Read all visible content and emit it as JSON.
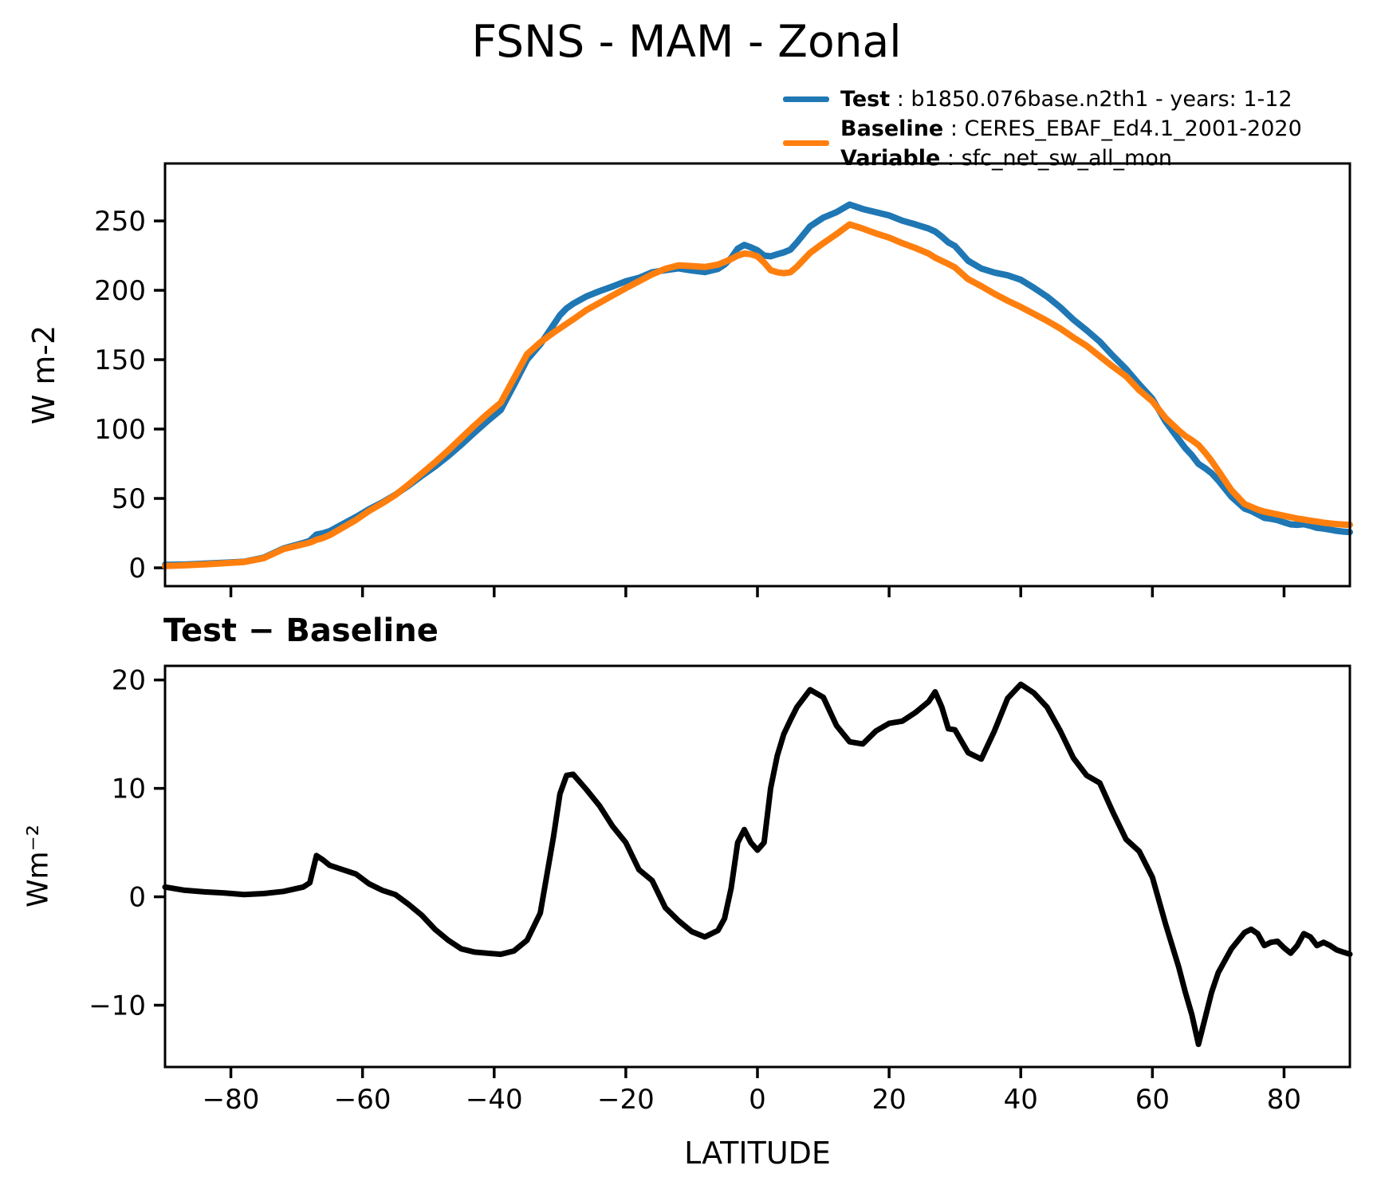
{
  "title": "FSNS - MAM - Zonal",
  "colors": {
    "test": "#1f77b4",
    "baseline": "#ff7f0e",
    "diff": "#000000"
  },
  "legend": {
    "test": {
      "name": "Test",
      "desc": " : b1850.076base.n2th1 - years: 1-12"
    },
    "baseline": {
      "name": "Baseline",
      "desc": " : CERES_EBAF_Ed4.1_2001-2020"
    },
    "variable": {
      "name": "Variable",
      "desc": " : sfc_net_sw_all_mon"
    }
  },
  "xaxis": {
    "label": "LATITUDE",
    "tick_values": [
      -80,
      -60,
      -40,
      -20,
      0,
      20,
      40,
      60,
      80
    ],
    "tick_labels": [
      "−80",
      "−60",
      "−40",
      "−20",
      "0",
      "20",
      "40",
      "60",
      "80"
    ],
    "lim": [
      -90,
      90
    ]
  },
  "chart_data": [
    {
      "type": "line",
      "title": "FSNS - MAM - Zonal",
      "ylabel": "W m-2",
      "xlabel": "",
      "legend_position": "upper right, above axes",
      "grid": false,
      "xlim": [
        -90,
        90
      ],
      "ylim": [
        -13.2,
        291.4
      ],
      "ytick_values": [
        0,
        50,
        100,
        150,
        200,
        250
      ],
      "ytick_labels": [
        "0",
        "50",
        "100",
        "150",
        "200",
        "250"
      ],
      "show_xlabels": false,
      "x": [
        -90,
        -87,
        -84,
        -81,
        -78,
        -75,
        -72,
        -69,
        -68,
        -67,
        -66,
        -65,
        -63,
        -61,
        -59,
        -57,
        -55,
        -53,
        -51,
        -49,
        -47,
        -45,
        -43,
        -41,
        -39,
        -37,
        -35,
        -33,
        -31,
        -30,
        -29,
        -28,
        -26,
        -24,
        -22,
        -20,
        -18,
        -16,
        -14,
        -12,
        -10,
        -8,
        -6,
        -5,
        -4,
        -3,
        -2,
        -1,
        0,
        1,
        2,
        3,
        4,
        5,
        6,
        8,
        10,
        12,
        14,
        16,
        18,
        20,
        22,
        24,
        26,
        27,
        28,
        29,
        30,
        32,
        34,
        36,
        38,
        40,
        42,
        44,
        46,
        48,
        50,
        52,
        54,
        56,
        58,
        60,
        62,
        64,
        65,
        66,
        67,
        68,
        69,
        70,
        72,
        74,
        75,
        76,
        77,
        78,
        79,
        80,
        81,
        82,
        83,
        84,
        85,
        86,
        87,
        88,
        89,
        90
      ],
      "series": [
        {
          "name": "Test: b1850.076base.n2th1 - years: 1-12",
          "slug": "test-line",
          "color": "#1f77b4",
          "width": 8,
          "values": [
            2.2,
            2.4,
            3.0,
            3.7,
            4.4,
            7.3,
            14.0,
            17.9,
            19.5,
            24.0,
            24.9,
            26.4,
            31.5,
            36.6,
            42.2,
            47.1,
            52.7,
            59.3,
            66.3,
            73.0,
            80.5,
            88.7,
            97.4,
            105.8,
            113.7,
            131.5,
            150.0,
            161.0,
            175.0,
            182.1,
            187.0,
            190.3,
            195.6,
            199.4,
            202.8,
            206.5,
            209.0,
            213.0,
            214.5,
            215.8,
            214.3,
            213.1,
            215.4,
            218.5,
            223.3,
            230.0,
            232.7,
            231.0,
            228.8,
            225.0,
            224.5,
            226.0,
            227.3,
            229.3,
            234.5,
            246.1,
            252.4,
            256.3,
            261.8,
            258.6,
            256.3,
            254.0,
            250.2,
            247.5,
            244.5,
            242.4,
            238.7,
            234.5,
            231.9,
            221.3,
            215.7,
            212.8,
            210.8,
            207.6,
            201.8,
            195.5,
            187.8,
            178.8,
            171.2,
            163.0,
            152.8,
            143.3,
            132.2,
            121.8,
            105.5,
            92.5,
            86.2,
            81.1,
            74.9,
            71.8,
            68.2,
            63.0,
            51.2,
            42.7,
            41.0,
            38.6,
            36.0,
            35.3,
            34.4,
            32.8,
            31.3,
            31.0,
            31.4,
            30.3,
            28.8,
            28.3,
            27.5,
            26.6,
            26.1,
            25.7
          ]
        },
        {
          "name": "Baseline: CERES_EBAF_Ed4.1_2001-2020",
          "slug": "baseline-line",
          "color": "#ff7f0e",
          "width": 8,
          "values": [
            1.3,
            1.8,
            2.5,
            3.3,
            4.2,
            7.0,
            13.5,
            17.0,
            18.2,
            20.2,
            21.5,
            23.5,
            29.0,
            34.5,
            41.0,
            46.5,
            52.5,
            60.0,
            68.0,
            76.0,
            84.5,
            93.5,
            102.5,
            111.0,
            119.0,
            136.5,
            154.0,
            162.5,
            169.5,
            172.6,
            175.8,
            179.0,
            185.7,
            191.0,
            196.3,
            201.5,
            206.5,
            211.5,
            215.5,
            218.0,
            217.5,
            216.8,
            218.5,
            220.5,
            222.5,
            225.0,
            226.5,
            226.0,
            224.5,
            220.0,
            214.5,
            213.0,
            212.3,
            213.0,
            217.0,
            227.0,
            234.0,
            240.5,
            247.5,
            244.5,
            241.0,
            238.0,
            234.0,
            230.5,
            226.5,
            223.5,
            221.2,
            219.0,
            216.5,
            208.0,
            203.0,
            197.5,
            192.5,
            188.0,
            183.0,
            178.0,
            172.5,
            166.0,
            160.0,
            152.5,
            145.0,
            138.0,
            128.0,
            120.0,
            108.0,
            99.0,
            95.0,
            92.0,
            88.5,
            83.0,
            77.0,
            70.0,
            56.0,
            46.0,
            44.0,
            42.0,
            40.5,
            39.5,
            38.5,
            37.5,
            36.5,
            35.5,
            34.8,
            34.0,
            33.3,
            32.5,
            32.0,
            31.5,
            31.2,
            31.0
          ]
        }
      ]
    },
    {
      "type": "line",
      "title": "Test − Baseline",
      "ylabel": "Wm⁻²",
      "xlabel": "LATITUDE",
      "grid": false,
      "xlim": [
        -90,
        90
      ],
      "ylim": [
        -15.7,
        21.3
      ],
      "ytick_values": [
        -10,
        0,
        10,
        20
      ],
      "ytick_labels": [
        "−10",
        "0",
        "10",
        "20"
      ],
      "show_xlabels": true,
      "x": [
        -90,
        -87,
        -84,
        -81,
        -78,
        -75,
        -72,
        -69,
        -68,
        -67,
        -66,
        -65,
        -63,
        -61,
        -59,
        -57,
        -55,
        -53,
        -51,
        -49,
        -47,
        -45,
        -43,
        -41,
        -39,
        -37,
        -35,
        -33,
        -31,
        -30,
        -29,
        -28,
        -26,
        -24,
        -22,
        -20,
        -18,
        -16,
        -14,
        -12,
        -10,
        -8,
        -6,
        -5,
        -4,
        -3,
        -2,
        -1,
        0,
        1,
        2,
        3,
        4,
        5,
        6,
        8,
        10,
        12,
        14,
        16,
        18,
        20,
        22,
        24,
        26,
        27,
        28,
        29,
        30,
        32,
        34,
        36,
        38,
        40,
        42,
        44,
        46,
        48,
        50,
        52,
        54,
        56,
        58,
        60,
        62,
        64,
        65,
        66,
        67,
        68,
        69,
        70,
        72,
        74,
        75,
        76,
        77,
        78,
        79,
        80,
        81,
        82,
        83,
        84,
        85,
        86,
        87,
        88,
        89,
        90
      ],
      "series": [
        {
          "name": "Test − Baseline",
          "slug": "diff-line",
          "color": "#000000",
          "width": 7,
          "values": [
            0.9,
            0.6,
            0.45,
            0.35,
            0.2,
            0.3,
            0.5,
            0.9,
            1.3,
            3.8,
            3.4,
            2.9,
            2.5,
            2.1,
            1.2,
            0.6,
            0.2,
            -0.7,
            -1.7,
            -3.0,
            -4.0,
            -4.8,
            -5.1,
            -5.2,
            -5.3,
            -5.0,
            -4.0,
            -1.5,
            5.5,
            9.5,
            11.2,
            11.3,
            9.9,
            8.4,
            6.5,
            5.0,
            2.5,
            1.5,
            -1.0,
            -2.2,
            -3.2,
            -3.7,
            -3.1,
            -2.0,
            0.8,
            5.0,
            6.2,
            5.0,
            4.3,
            5.0,
            10.0,
            13.0,
            15.0,
            16.3,
            17.5,
            19.1,
            18.4,
            15.8,
            14.3,
            14.1,
            15.3,
            16.0,
            16.2,
            17.0,
            18.0,
            18.9,
            17.5,
            15.5,
            15.4,
            13.3,
            12.7,
            15.3,
            18.3,
            19.6,
            18.8,
            17.5,
            15.3,
            12.8,
            11.2,
            10.5,
            7.8,
            5.3,
            4.2,
            1.8,
            -2.5,
            -6.5,
            -8.8,
            -10.9,
            -13.6,
            -11.2,
            -8.8,
            -7.0,
            -4.8,
            -3.3,
            -3.0,
            -3.4,
            -4.5,
            -4.2,
            -4.1,
            -4.7,
            -5.2,
            -4.5,
            -3.4,
            -3.7,
            -4.5,
            -4.2,
            -4.5,
            -4.9,
            -5.1,
            -5.3
          ]
        }
      ]
    }
  ]
}
